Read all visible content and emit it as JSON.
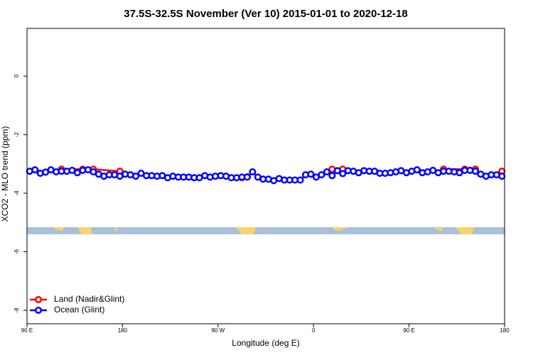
{
  "chart_data": {
    "type": "line",
    "title": "37.5S-32.5S November (Ver 10)   2015-01-01 to 2020-12-18",
    "x_label": "Longitude (deg E)",
    "y_label": "XCO2 - MLO trend (ppm)",
    "xlim": [
      90,
      540
    ],
    "xticks": [
      {
        "value": 90,
        "label": "90 E"
      },
      {
        "value": 180,
        "label": "180"
      },
      {
        "value": 270,
        "label": "90 W"
      },
      {
        "value": 360,
        "label": "0"
      },
      {
        "value": 450,
        "label": "90 E"
      },
      {
        "value": 540,
        "label": "180"
      }
    ],
    "ylim": [
      -8.46,
      1.63
    ],
    "yticks": [
      0,
      -2,
      -4,
      -6,
      -8
    ],
    "legend": "bottom-left",
    "series": [
      {
        "name": "Land (Nadir&Glint)",
        "color": "#ff0000",
        "x": [
          122.5,
          142.5,
          152.5,
          177.5,
          235,
          292.5,
          297.5,
          335,
          377.5,
          387.5,
          435,
          482.5,
          502.5,
          512.5,
          525,
          537.5
        ],
        "values": [
          -3.18,
          -3.18,
          -3.18,
          -3.25,
          null,
          -3.47,
          -3.44,
          null,
          -3.18,
          -3.18,
          null,
          -3.18,
          -3.18,
          -3.18,
          null,
          -3.25
        ]
      },
      {
        "name": "Ocean (Glint)",
        "color": "#0000ff",
        "x": [
          92.5,
          97.5,
          102.5,
          107.5,
          112.5,
          117.5,
          122.5,
          127.5,
          132.5,
          137.5,
          142.5,
          147.5,
          152.5,
          157.5,
          162.5,
          167.5,
          172.5,
          177.5,
          182.5,
          187.5,
          192.5,
          197.5,
          202.5,
          207.5,
          212.5,
          217.5,
          222.5,
          227.5,
          232.5,
          237.5,
          242.5,
          247.5,
          252.5,
          257.5,
          262.5,
          267.5,
          272.5,
          277.5,
          282.5,
          287.5,
          292.5,
          297.5,
          302.5,
          307.5,
          312.5,
          317.5,
          322.5,
          327.5,
          332.5,
          337.5,
          342.5,
          347.5,
          352.5,
          357.5,
          362.5,
          367.5,
          372.5,
          377.5,
          382.5,
          387.5,
          392.5,
          397.5,
          402.5,
          407.5,
          412.5,
          417.5,
          422.5,
          427.5,
          432.5,
          437.5,
          442.5,
          447.5,
          452.5,
          457.5,
          462.5,
          467.5,
          472.5,
          477.5,
          482.5,
          487.5,
          492.5,
          497.5,
          502.5,
          507.5,
          512.5,
          517.5,
          522.5,
          527.5,
          532.5,
          537.5
        ],
        "values": [
          -3.25,
          -3.2,
          -3.32,
          -3.28,
          -3.2,
          -3.27,
          -3.25,
          -3.25,
          -3.22,
          -3.3,
          -3.22,
          -3.2,
          -3.27,
          -3.35,
          -3.42,
          -3.37,
          -3.37,
          -3.42,
          -3.35,
          -3.37,
          -3.42,
          -3.32,
          -3.4,
          -3.4,
          -3.42,
          -3.4,
          -3.47,
          -3.42,
          -3.45,
          -3.45,
          -3.45,
          -3.47,
          -3.47,
          -3.4,
          -3.45,
          -3.42,
          -3.4,
          -3.42,
          -3.47,
          -3.47,
          -3.45,
          -3.45,
          -3.27,
          -3.45,
          -3.52,
          -3.52,
          -3.57,
          -3.5,
          -3.55,
          -3.55,
          -3.55,
          -3.55,
          -3.37,
          -3.35,
          -3.45,
          -3.37,
          -3.27,
          -3.4,
          -3.23,
          -3.33,
          -3.23,
          -3.25,
          -3.3,
          -3.23,
          -3.25,
          -3.25,
          -3.32,
          -3.32,
          -3.3,
          -3.27,
          -3.23,
          -3.3,
          -3.25,
          -3.2,
          -3.3,
          -3.27,
          -3.22,
          -3.3,
          -3.25,
          -3.25,
          -3.27,
          -3.3,
          -3.22,
          -3.22,
          -3.25,
          -3.35,
          -3.42,
          -3.37,
          -3.37,
          -3.42
        ]
      }
    ]
  }
}
